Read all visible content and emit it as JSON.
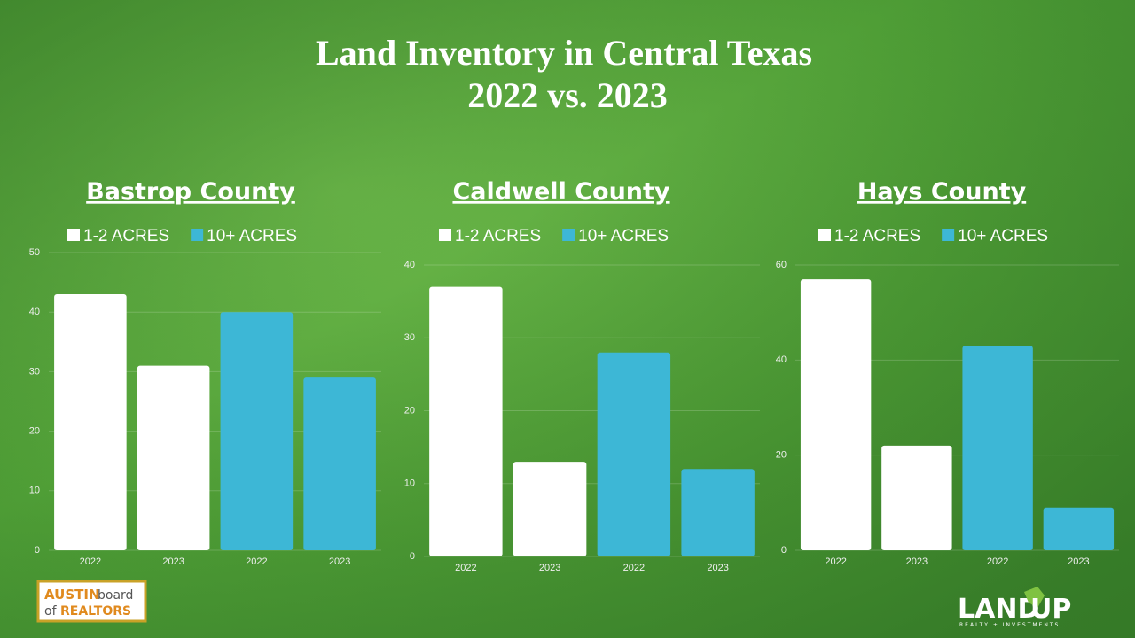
{
  "title": [
    "Land Inventory in Central Texas",
    "2022 vs. 2023"
  ],
  "logos": {
    "austin": [
      "AUSTIN",
      "board",
      "of",
      "REALTORS"
    ],
    "landup": [
      "LAND",
      "UP",
      "REALTY + INVESTMENTS"
    ]
  },
  "chart_data": [
    {
      "type": "bar",
      "title": "Bastrop County",
      "categories": [
        "2022",
        "2023",
        "2022",
        "2023"
      ],
      "series": [
        {
          "name": "1-2 ACRES",
          "color": "#ffffff",
          "values": [
            43,
            31,
            null,
            null
          ]
        },
        {
          "name": "10+ ACRES",
          "color": "#3db7d6",
          "values": [
            null,
            null,
            40,
            29
          ]
        }
      ],
      "ylim": [
        0,
        50
      ],
      "yticks": [
        0,
        10,
        20,
        30,
        40,
        50
      ],
      "grid": true
    },
    {
      "type": "bar",
      "title": "Caldwell County",
      "categories": [
        "2022",
        "2023",
        "2022",
        "2023"
      ],
      "series": [
        {
          "name": "1-2 ACRES",
          "color": "#ffffff",
          "values": [
            37,
            13,
            null,
            null
          ]
        },
        {
          "name": "10+ ACRES",
          "color": "#3db7d6",
          "values": [
            null,
            null,
            28,
            12
          ]
        }
      ],
      "ylim": [
        0,
        40
      ],
      "yticks": [
        0,
        10,
        20,
        30,
        40
      ],
      "grid": true
    },
    {
      "type": "bar",
      "title": "Hays County",
      "categories": [
        "2022",
        "2023",
        "2022",
        "2023"
      ],
      "series": [
        {
          "name": "1-2 ACRES",
          "color": "#ffffff",
          "values": [
            57,
            22,
            null,
            null
          ]
        },
        {
          "name": "10+ ACRES",
          "color": "#3db7d6",
          "values": [
            null,
            null,
            43,
            9
          ]
        }
      ],
      "ylim": [
        0,
        60
      ],
      "yticks": [
        0,
        20,
        40,
        60
      ],
      "grid": true
    }
  ]
}
